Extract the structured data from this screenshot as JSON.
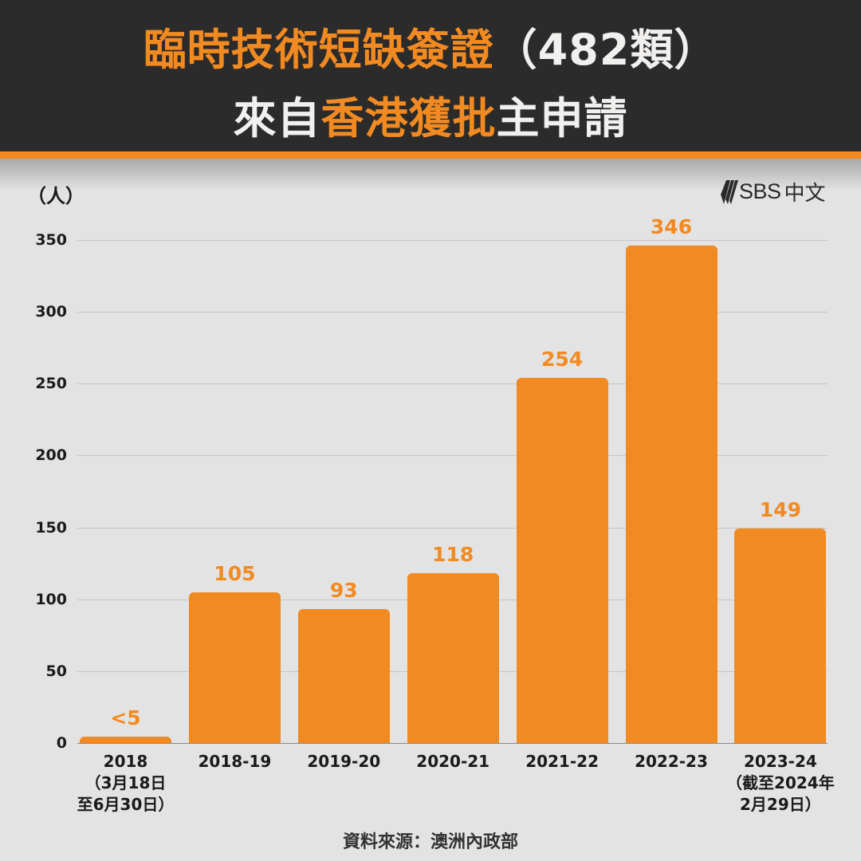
{
  "header": {
    "line1_orange": "臨時技術短缺簽證",
    "line1_white": "（482類）",
    "line2_white_a": "來自",
    "line2_orange": "香港獲批",
    "line2_white_b": "主申請"
  },
  "logo": {
    "brand": "SBS",
    "suffix": "中文"
  },
  "colors": {
    "accent": "#f28a22",
    "header_bg": "#2b2b2b",
    "background": "#e3e3e3"
  },
  "source": "資料來源：澳洲內政部",
  "chart_data": {
    "type": "bar",
    "title": "臨時技術短缺簽證（482類）來自香港獲批主申請",
    "ylabel": "（人）",
    "xlabel": "",
    "ylim": [
      0,
      350
    ],
    "yticks": [
      0,
      50,
      100,
      150,
      200,
      250,
      300,
      350
    ],
    "grid": true,
    "categories": [
      "2018",
      "2018-19",
      "2019-20",
      "2020-21",
      "2021-22",
      "2022-23",
      "2023-24"
    ],
    "category_notes": [
      "（3月18日 至6月30日）",
      "",
      "",
      "",
      "",
      "",
      "（截至2024年 2月29日）"
    ],
    "values": [
      4,
      105,
      93,
      118,
      254,
      346,
      149
    ],
    "value_labels": [
      "<5",
      "105",
      "93",
      "118",
      "254",
      "346",
      "149"
    ],
    "source": "資料來源：澳洲內政部"
  }
}
